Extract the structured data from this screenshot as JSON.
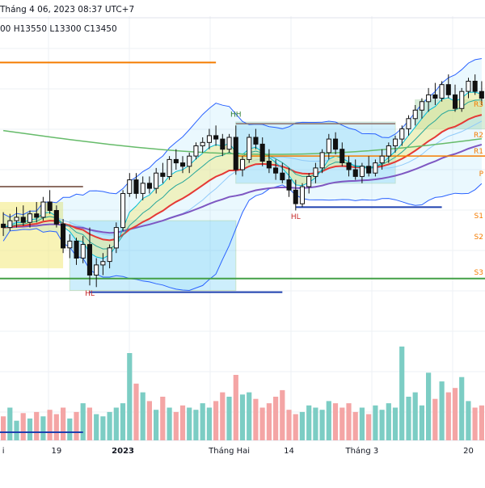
{
  "header": {
    "datetime": "Tháng 4 06, 2023 08:37 UTC+7",
    "ohlc": "00   H13550   L13300   C13450"
  },
  "colors": {
    "up": "#089981",
    "down": "#f23645",
    "bb": "#2962ff",
    "ema_fast": "#00bcd4",
    "ema_mid": "#e53935",
    "ema_slow": "#7e57c2",
    "ema_long": "#66bb6a",
    "pivot": "#f57c00",
    "volume_up": "#7ccdc4",
    "volume_down": "#f4a5a5"
  },
  "chart_data": {
    "type": "candlestick",
    "y_range": [
      12500,
      14400
    ],
    "x_ticks": [
      {
        "label": "i",
        "index": 0
      },
      {
        "label": "19",
        "index": 8
      },
      {
        "label": "2023",
        "index": 18
      },
      {
        "label": "Tháng Hai",
        "index": 34
      },
      {
        "label": "14",
        "index": 43
      },
      {
        "label": "Tháng 3",
        "index": 54
      },
      {
        "label": "20",
        "index": 70
      }
    ],
    "annotations": [
      {
        "text": "HH",
        "index": 35,
        "price": 13950
      },
      {
        "text": "HL",
        "index": 44,
        "price": 13350
      },
      {
        "text": "HL",
        "index": 13,
        "price": 12900
      }
    ],
    "pivot_labels": [
      "R3",
      "R2",
      "R1",
      "P",
      "S1",
      "S2",
      "S3"
    ],
    "candles": [
      [
        13320,
        13390,
        13250,
        13300
      ],
      [
        13300,
        13380,
        13280,
        13340
      ],
      [
        13340,
        13420,
        13300,
        13360
      ],
      [
        13360,
        13430,
        13310,
        13330
      ],
      [
        13330,
        13400,
        13300,
        13380
      ],
      [
        13380,
        13450,
        13330,
        13360
      ],
      [
        13360,
        13480,
        13340,
        13450
      ],
      [
        13450,
        13520,
        13380,
        13400
      ],
      [
        13400,
        13430,
        13300,
        13320
      ],
      [
        13320,
        13350,
        13150,
        13180
      ],
      [
        13180,
        13260,
        13120,
        13220
      ],
      [
        13220,
        13240,
        13080,
        13120
      ],
      [
        13120,
        13250,
        13090,
        13200
      ],
      [
        13200,
        13300,
        12960,
        13020
      ],
      [
        13020,
        13120,
        12950,
        13080
      ],
      [
        13080,
        13150,
        13020,
        13100
      ],
      [
        13100,
        13200,
        13060,
        13180
      ],
      [
        13180,
        13330,
        13150,
        13300
      ],
      [
        13300,
        13520,
        13280,
        13500
      ],
      [
        13500,
        13620,
        13480,
        13580
      ],
      [
        13580,
        13620,
        13470,
        13500
      ],
      [
        13500,
        13600,
        13460,
        13560
      ],
      [
        13560,
        13600,
        13500,
        13530
      ],
      [
        13530,
        13650,
        13500,
        13620
      ],
      [
        13620,
        13680,
        13560,
        13600
      ],
      [
        13600,
        13720,
        13580,
        13700
      ],
      [
        13700,
        13760,
        13640,
        13680
      ],
      [
        13680,
        13720,
        13620,
        13660
      ],
      [
        13660,
        13740,
        13620,
        13720
      ],
      [
        13720,
        13800,
        13700,
        13780
      ],
      [
        13780,
        13830,
        13740,
        13800
      ],
      [
        13800,
        13880,
        13760,
        13840
      ],
      [
        13840,
        13900,
        13780,
        13820
      ],
      [
        13820,
        13850,
        13720,
        13760
      ],
      [
        13760,
        13850,
        13740,
        13830
      ],
      [
        13830,
        13900,
        13610,
        13640
      ],
      [
        13640,
        13720,
        13600,
        13700
      ],
      [
        13700,
        13850,
        13680,
        13830
      ],
      [
        13830,
        13880,
        13760,
        13790
      ],
      [
        13790,
        13830,
        13660,
        13690
      ],
      [
        13690,
        13760,
        13620,
        13650
      ],
      [
        13650,
        13700,
        13580,
        13620
      ],
      [
        13620,
        13680,
        13560,
        13580
      ],
      [
        13580,
        13650,
        13480,
        13520
      ],
      [
        13520,
        13580,
        13400,
        13440
      ],
      [
        13440,
        13560,
        13420,
        13540
      ],
      [
        13540,
        13620,
        13500,
        13600
      ],
      [
        13600,
        13680,
        13560,
        13650
      ],
      [
        13650,
        13760,
        13620,
        13740
      ],
      [
        13740,
        13850,
        13700,
        13820
      ],
      [
        13820,
        13860,
        13730,
        13760
      ],
      [
        13760,
        13800,
        13660,
        13680
      ],
      [
        13680,
        13720,
        13600,
        13640
      ],
      [
        13640,
        13700,
        13580,
        13600
      ],
      [
        13600,
        13680,
        13560,
        13660
      ],
      [
        13660,
        13720,
        13600,
        13620
      ],
      [
        13620,
        13700,
        13600,
        13680
      ],
      [
        13680,
        13760,
        13640,
        13720
      ],
      [
        13720,
        13800,
        13680,
        13780
      ],
      [
        13780,
        13840,
        13740,
        13820
      ],
      [
        13820,
        13900,
        13780,
        13880
      ],
      [
        13880,
        13960,
        13840,
        13940
      ],
      [
        13940,
        14020,
        13900,
        13990
      ],
      [
        13990,
        14060,
        13940,
        14040
      ],
      [
        14040,
        14120,
        13980,
        14080
      ],
      [
        14080,
        14150,
        14020,
        14060
      ],
      [
        14060,
        14160,
        14040,
        14140
      ],
      [
        14140,
        14200,
        14060,
        14080
      ],
      [
        14080,
        14140,
        13980,
        14000
      ],
      [
        14000,
        14120,
        13980,
        14100
      ],
      [
        14100,
        14180,
        14060,
        14160
      ],
      [
        14160,
        14200,
        14080,
        14100
      ],
      [
        14100,
        14160,
        14020,
        14060
      ]
    ],
    "volume_scale": 100,
    "volumes": [
      22,
      30,
      18,
      25,
      20,
      26,
      22,
      28,
      24,
      30,
      20,
      26,
      34,
      30,
      24,
      22,
      26,
      30,
      34,
      80,
      52,
      44,
      36,
      28,
      40,
      30,
      26,
      32,
      30,
      28,
      34,
      30,
      36,
      44,
      40,
      60,
      42,
      44,
      38,
      30,
      34,
      40,
      46,
      28,
      24,
      26,
      32,
      30,
      28,
      36,
      34,
      30,
      34,
      26,
      30,
      24,
      32,
      28,
      34,
      30,
      86,
      40,
      44,
      32,
      62,
      38,
      54,
      44,
      48,
      58,
      36,
      30,
      32
    ]
  }
}
